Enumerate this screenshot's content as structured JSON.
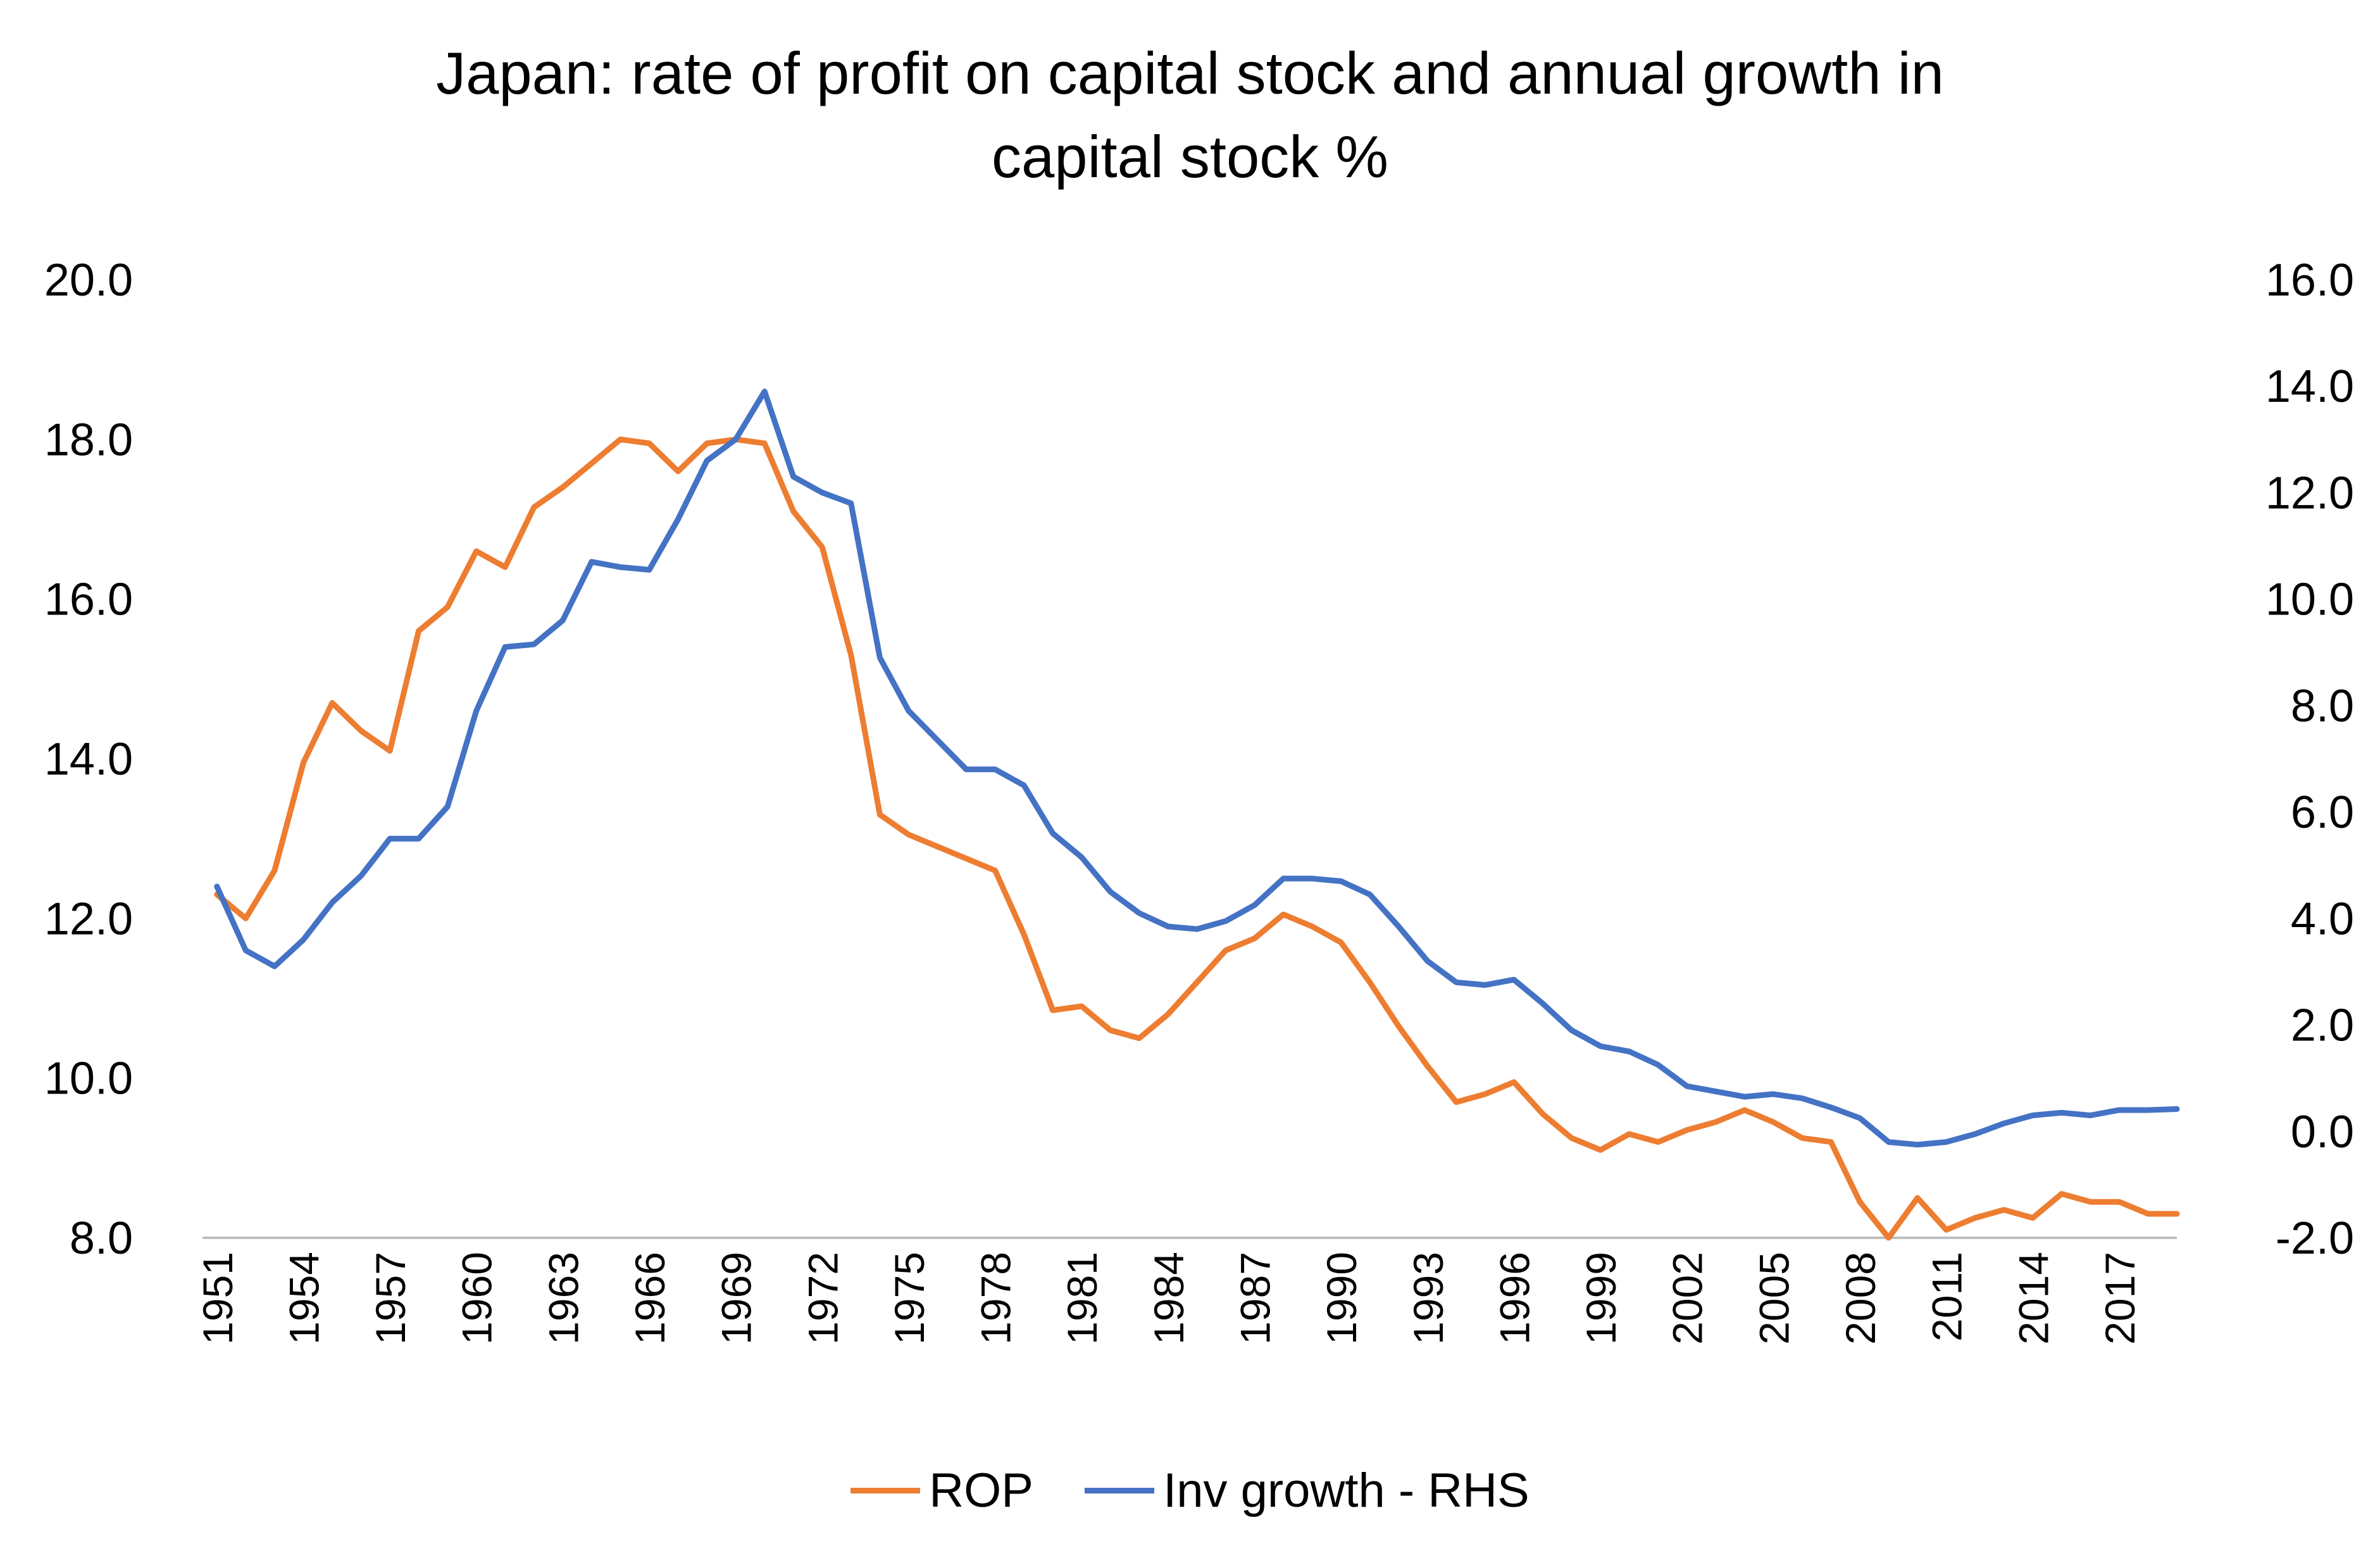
{
  "chart_data": {
    "type": "line",
    "title_lines": [
      "Japan: rate of profit on capital stock and annual growth in",
      "capital stock %"
    ],
    "xlabel": "",
    "ylabel_left": "",
    "ylabel_right": "",
    "x": [
      1951,
      1952,
      1953,
      1954,
      1955,
      1956,
      1957,
      1958,
      1959,
      1960,
      1961,
      1962,
      1963,
      1964,
      1965,
      1966,
      1967,
      1968,
      1969,
      1970,
      1971,
      1972,
      1973,
      1974,
      1975,
      1976,
      1977,
      1978,
      1979,
      1980,
      1981,
      1982,
      1983,
      1984,
      1985,
      1986,
      1987,
      1988,
      1989,
      1990,
      1991,
      1992,
      1993,
      1994,
      1995,
      1996,
      1997,
      1998,
      1999,
      2000,
      2001,
      2002,
      2003,
      2004,
      2005,
      2006,
      2007,
      2008,
      2009,
      2010,
      2011,
      2012,
      2013,
      2014,
      2015,
      2016,
      2017,
      2018,
      2019
    ],
    "x_tick_labels": [
      "1951",
      "1954",
      "1957",
      "1960",
      "1963",
      "1966",
      "1969",
      "1972",
      "1975",
      "1978",
      "1981",
      "1984",
      "1987",
      "1990",
      "1993",
      "1996",
      "1999",
      "2002",
      "2005",
      "2008",
      "2011",
      "2014",
      "2017"
    ],
    "ylim_left": [
      8.0,
      20.0
    ],
    "y_ticks_left": [
      "8.0",
      "10.0",
      "12.0",
      "14.0",
      "16.0",
      "18.0",
      "20.0"
    ],
    "ylim_right": [
      -2.0,
      16.0
    ],
    "y_ticks_right": [
      "-2.0",
      "0.0",
      "2.0",
      "4.0",
      "6.0",
      "8.0",
      "10.0",
      "12.0",
      "14.0",
      "16.0"
    ],
    "grid": false,
    "legend_position": "bottom",
    "series": [
      {
        "name": "ROP",
        "axis": "left",
        "color": "#ED7D31",
        "values": [
          12.3,
          12.0,
          12.6,
          13.95,
          14.7,
          14.35,
          14.1,
          15.6,
          15.9,
          16.6,
          16.4,
          17.15,
          17.4,
          17.7,
          18.0,
          17.95,
          17.6,
          17.95,
          18.0,
          17.95,
          17.1,
          16.65,
          15.3,
          13.3,
          13.05,
          12.9,
          12.75,
          12.6,
          11.8,
          10.85,
          10.9,
          10.6,
          10.5,
          10.8,
          11.2,
          11.6,
          11.75,
          12.05,
          11.9,
          11.7,
          11.2,
          10.65,
          10.15,
          9.7,
          9.8,
          9.95,
          9.55,
          9.25,
          9.1,
          9.3,
          9.2,
          9.35,
          9.45,
          9.6,
          9.45,
          9.25,
          9.2,
          8.45,
          8.0,
          8.5,
          8.1,
          8.25,
          8.35,
          8.25,
          8.55,
          8.45,
          8.45,
          8.3,
          8.3
        ]
      },
      {
        "name": "Inv growth - RHS",
        "axis": "right",
        "color": "#4472C4",
        "values": [
          4.6,
          3.4,
          3.1,
          3.6,
          4.3,
          4.8,
          5.5,
          5.5,
          6.1,
          7.9,
          9.1,
          9.15,
          9.6,
          10.7,
          10.6,
          10.55,
          11.5,
          12.6,
          13.0,
          13.9,
          12.3,
          12.0,
          11.8,
          8.9,
          7.9,
          7.35,
          6.8,
          6.8,
          6.5,
          5.6,
          5.15,
          4.5,
          4.1,
          3.85,
          3.8,
          3.95,
          4.25,
          4.75,
          4.75,
          4.7,
          4.45,
          3.85,
          3.2,
          2.8,
          2.75,
          2.85,
          2.4,
          1.9,
          1.6,
          1.5,
          1.25,
          0.85,
          0.75,
          0.65,
          0.7,
          0.62,
          0.45,
          0.25,
          -0.2,
          -0.25,
          -0.2,
          -0.05,
          0.15,
          0.3,
          0.35,
          0.3,
          0.4,
          0.4,
          0.42
        ]
      }
    ]
  }
}
